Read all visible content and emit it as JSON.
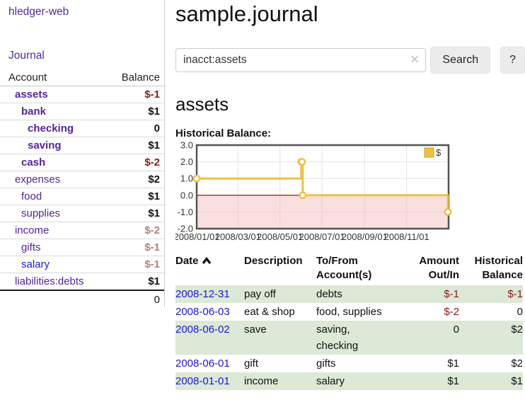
{
  "app": {
    "brand": "hledger-web",
    "nav_journal": "Journal"
  },
  "palette": {
    "accent_purple": "#55259c",
    "link_blue": "#1a1add",
    "negative_strong": "#8c1a1a",
    "negative_light": "#bb7c7c",
    "row_green": "#dbe9d6",
    "chart_line": "#edc240",
    "zero_line": "#990000",
    "negative_region": "#f5b8b8"
  },
  "sidebar": {
    "table": {
      "headers": [
        "Account",
        "Balance"
      ],
      "rows": [
        {
          "account": "assets",
          "balance": "$-1",
          "indent": 1,
          "bold": true,
          "neg": "strong"
        },
        {
          "account": "bank",
          "balance": "$1",
          "indent": 2,
          "bold": true,
          "neg": null
        },
        {
          "account": "checking",
          "balance": "0",
          "indent": 3,
          "bold": true,
          "neg": null
        },
        {
          "account": "saving",
          "balance": "$1",
          "indent": 3,
          "bold": true,
          "neg": null
        },
        {
          "account": "cash",
          "balance": "$-2",
          "indent": 2,
          "bold": true,
          "neg": "strong"
        },
        {
          "account": "expenses",
          "balance": "$2",
          "indent": 1,
          "bold": false,
          "neg": null
        },
        {
          "account": "food",
          "balance": "$1",
          "indent": 2,
          "bold": false,
          "neg": null
        },
        {
          "account": "supplies",
          "balance": "$1",
          "indent": 2,
          "bold": false,
          "neg": null
        },
        {
          "account": "income",
          "balance": "$-2",
          "indent": 1,
          "bold": false,
          "neg": "light"
        },
        {
          "account": "gifts",
          "balance": "$-1",
          "indent": 2,
          "bold": false,
          "neg": "light"
        },
        {
          "account": "salary",
          "balance": "$-1",
          "indent": 2,
          "bold": false,
          "neg": "light",
          "unvisited": true
        },
        {
          "account": "liabilities:debts",
          "balance": "$1",
          "indent": 1,
          "bold": false,
          "neg": null
        }
      ],
      "total": "0"
    }
  },
  "main": {
    "title": "sample.journal",
    "search": {
      "value": "inacct:assets",
      "clear_icon": "✕",
      "button_label": "Search",
      "help_label": "?"
    },
    "heading": "assets"
  },
  "chart_data": {
    "type": "line",
    "title": "Historical Balance:",
    "step": true,
    "x_range": [
      "2008-01-01",
      "2009-01-01"
    ],
    "ylim": [
      -2,
      3
    ],
    "y_ticks": [
      {
        "v": 3,
        "label": "3.0"
      },
      {
        "v": 2,
        "label": "2.0"
      },
      {
        "v": 1,
        "label": "1.0"
      },
      {
        "v": 0,
        "label": "0.0"
      },
      {
        "v": -1,
        "label": "-1.0"
      },
      {
        "v": -2,
        "label": "-2.0"
      }
    ],
    "x_ticks": [
      {
        "date": "2008-01-01",
        "label": "2008/01/01"
      },
      {
        "date": "2008-03-01",
        "label": "2008/03/01"
      },
      {
        "date": "2008-05-01",
        "label": "2008/05/01"
      },
      {
        "date": "2008-07-01",
        "label": "2008/07/01"
      },
      {
        "date": "2008-09-01",
        "label": "2008/09/01"
      },
      {
        "date": "2008-11-01",
        "label": "2008/11/01"
      }
    ],
    "legend": [
      {
        "label": "$",
        "color": "#edc240",
        "position": "top-right"
      }
    ],
    "grid": true,
    "series": [
      {
        "name": "$",
        "color": "#edc240",
        "points": [
          {
            "x": "2008-01-01",
            "y": 1
          },
          {
            "x": "2008-06-01",
            "y": 2
          },
          {
            "x": "2008-06-02",
            "y": 2
          },
          {
            "x": "2008-06-03",
            "y": 0
          },
          {
            "x": "2008-12-31",
            "y": -1
          }
        ]
      }
    ]
  },
  "transactions": {
    "headers": [
      "Date",
      "Description",
      "To/From Account(s)",
      "Amount Out/In",
      "Historical Balance"
    ],
    "sort": {
      "column": "Date",
      "direction": "ascending"
    },
    "rows": [
      {
        "date": "2008-12-31",
        "description": "pay off",
        "accounts": "debts",
        "amount": "$-1",
        "balance": "$-1"
      },
      {
        "date": "2008-06-03",
        "description": "eat & shop",
        "accounts": "food, supplies",
        "amount": "$-2",
        "balance": "0"
      },
      {
        "date": "2008-06-02",
        "description": "save",
        "accounts": "saving, checking",
        "amount": "0",
        "balance": "$2"
      },
      {
        "date": "2008-06-01",
        "description": "gift",
        "accounts": "gifts",
        "amount": "$1",
        "balance": "$2"
      },
      {
        "date": "2008-01-01",
        "description": "income",
        "accounts": "salary",
        "amount": "$1",
        "balance": "$1"
      }
    ]
  }
}
